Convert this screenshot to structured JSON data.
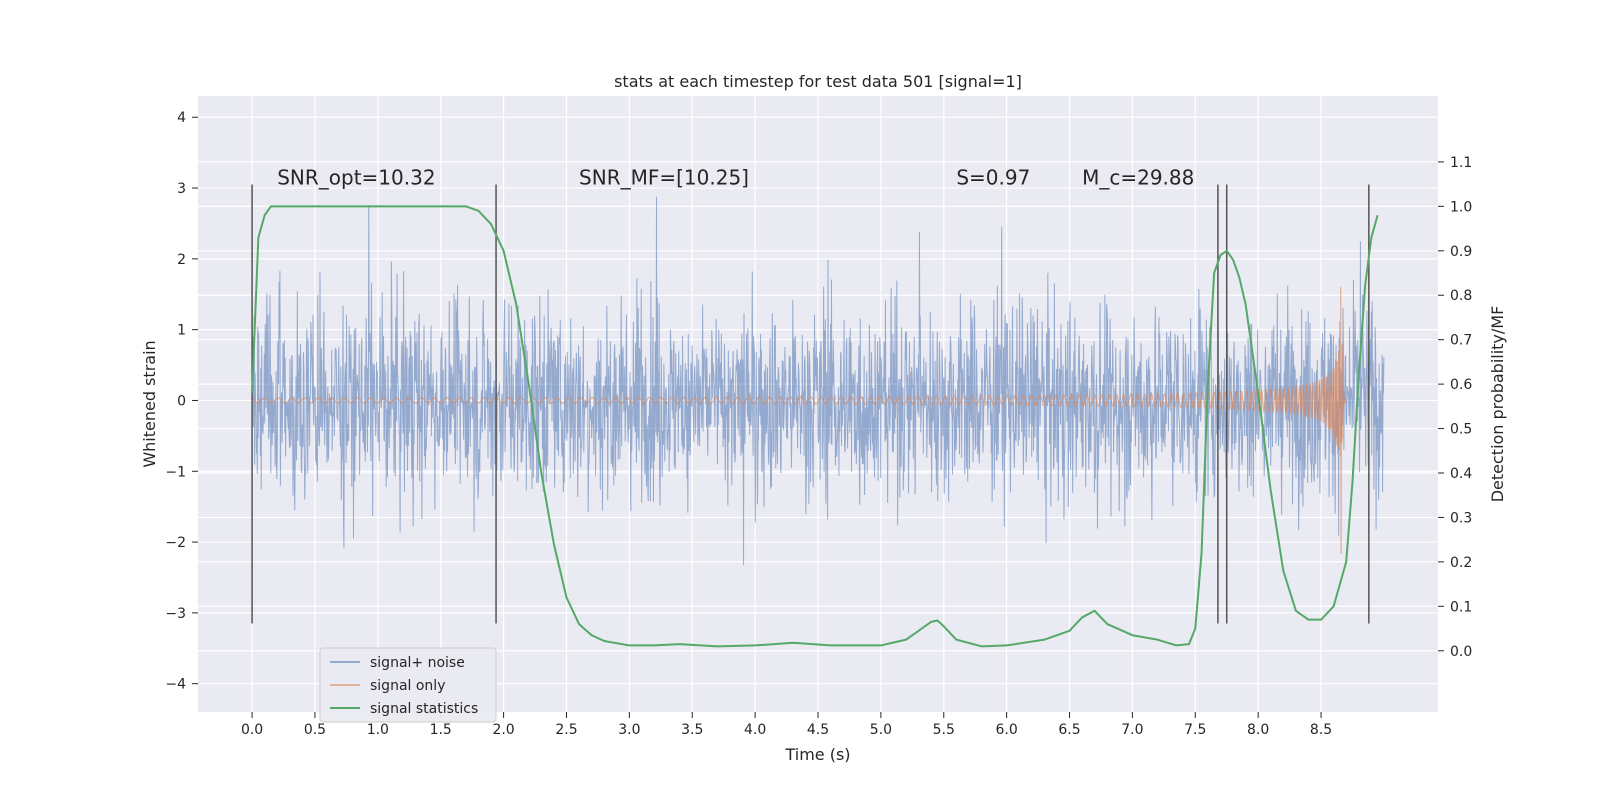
{
  "chart_data": {
    "type": "line",
    "title": "stats at each timestep for test data 501 [signal=1]",
    "xlabel": "Time (s)",
    "ylabel": "Whitened strain",
    "y2label": "Detection probability/MF",
    "xlim": [
      -0.43,
      9.43
    ],
    "ylim": [
      -4.4,
      4.3
    ],
    "y2lim": [
      -0.1378,
      1.2483
    ],
    "xticks": [
      0.0,
      0.5,
      1.0,
      1.5,
      2.0,
      2.5,
      3.0,
      3.5,
      4.0,
      4.5,
      5.0,
      5.5,
      6.0,
      6.5,
      7.0,
      7.5,
      8.0,
      8.5
    ],
    "xtick_labels": [
      "0.0",
      "0.5",
      "1.0",
      "1.5",
      "2.0",
      "2.5",
      "3.0",
      "3.5",
      "4.0",
      "4.5",
      "5.0",
      "5.5",
      "6.0",
      "6.5",
      "7.0",
      "7.5",
      "8.0",
      "8.5"
    ],
    "yticks": [
      -4,
      -3,
      -2,
      -1,
      0,
      1,
      2,
      3,
      4
    ],
    "ytick_labels": [
      "−4",
      "−3",
      "−2",
      "−1",
      "0",
      "1",
      "2",
      "3",
      "4"
    ],
    "y2ticks": [
      0.0,
      0.1,
      0.2,
      0.3,
      0.4,
      0.5,
      0.6,
      0.7,
      0.8,
      0.9,
      1.0,
      1.1
    ],
    "y2tick_labels": [
      "0.0",
      "0.1",
      "0.2",
      "0.3",
      "0.4",
      "0.5",
      "0.6",
      "0.7",
      "0.8",
      "0.9",
      "1.0",
      "1.1"
    ],
    "grid": true,
    "legend_position": "lower-left",
    "annotations": [
      "SNR_opt=10.32",
      "SNR_MF=[10.25]",
      "S=0.97",
      "M_c=29.88"
    ],
    "annotation_positions": [
      [
        0.2,
        3.05
      ],
      [
        2.6,
        3.05
      ],
      [
        5.6,
        3.05
      ],
      [
        6.6,
        3.05
      ]
    ],
    "vlines": [
      0.0,
      1.94,
      7.68,
      7.75,
      8.88
    ],
    "vline_range": [
      -3.15,
      3.05
    ],
    "colors": {
      "noise": "#4c72b0",
      "signal": "#dd8452",
      "stats": "#55a868",
      "vline": "#555555",
      "background": "#eaeaf2"
    },
    "series": [
      {
        "name": "signal+ noise",
        "axis": "left",
        "x_range": [
          0.0,
          9.0
        ],
        "amplitude_core": 1.2,
        "amplitude_peak": 3.9
      },
      {
        "name": "signal only",
        "axis": "left",
        "x_range": [
          0.0,
          8.7
        ],
        "merger_time": 8.66,
        "peak_amplitude": 2.4
      },
      {
        "name": "signal statistics",
        "axis": "right",
        "x": [
          0.0,
          0.05,
          0.1,
          0.15,
          0.2,
          0.3,
          0.5,
          0.8,
          1.2,
          1.5,
          1.7,
          1.8,
          1.9,
          2.0,
          2.1,
          2.2,
          2.3,
          2.4,
          2.5,
          2.6,
          2.7,
          2.8,
          3.0,
          3.2,
          3.4,
          3.7,
          4.0,
          4.3,
          4.6,
          5.0,
          5.2,
          5.3,
          5.4,
          5.45,
          5.5,
          5.6,
          5.8,
          6.0,
          6.3,
          6.5,
          6.6,
          6.7,
          6.8,
          7.0,
          7.2,
          7.35,
          7.45,
          7.5,
          7.55,
          7.6,
          7.65,
          7.7,
          7.75,
          7.8,
          7.85,
          7.9,
          8.0,
          8.1,
          8.2,
          8.3,
          8.4,
          8.5,
          8.6,
          8.7,
          8.75,
          8.8,
          8.85,
          8.9,
          8.95
        ],
        "values": [
          0.58,
          0.93,
          0.98,
          1.0,
          1.0,
          1.0,
          1.0,
          1.0,
          1.0,
          1.0,
          1.0,
          0.99,
          0.96,
          0.9,
          0.78,
          0.6,
          0.4,
          0.24,
          0.12,
          0.06,
          0.035,
          0.022,
          0.012,
          0.012,
          0.015,
          0.01,
          0.012,
          0.018,
          0.012,
          0.012,
          0.025,
          0.045,
          0.065,
          0.068,
          0.055,
          0.025,
          0.01,
          0.012,
          0.025,
          0.045,
          0.075,
          0.09,
          0.06,
          0.035,
          0.025,
          0.012,
          0.015,
          0.05,
          0.22,
          0.6,
          0.85,
          0.89,
          0.9,
          0.88,
          0.84,
          0.78,
          0.58,
          0.36,
          0.18,
          0.09,
          0.07,
          0.07,
          0.1,
          0.2,
          0.38,
          0.62,
          0.82,
          0.93,
          0.98
        ]
      }
    ]
  }
}
